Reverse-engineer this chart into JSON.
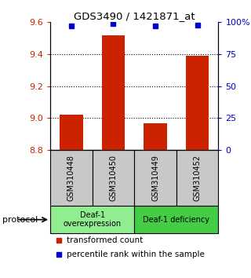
{
  "title": "GDS3490 / 1421871_at",
  "samples": [
    "GSM310448",
    "GSM310450",
    "GSM310449",
    "GSM310452"
  ],
  "bar_values": [
    9.02,
    9.52,
    8.97,
    9.39
  ],
  "percentile_values": [
    97,
    99,
    97,
    98
  ],
  "bar_bottom": 8.8,
  "ylim": [
    8.8,
    9.6
  ],
  "yticks": [
    8.8,
    9.0,
    9.2,
    9.4,
    9.6
  ],
  "right_yticks": [
    0,
    25,
    50,
    75,
    100
  ],
  "right_ylim": [
    0,
    100
  ],
  "bar_color": "#cc2200",
  "dot_color": "#0000cc",
  "group1_label": "Deaf-1\noverexpression",
  "group2_label": "Deaf-1 deficiency",
  "group1_color": "#90ee90",
  "group2_color": "#44cc44",
  "sample_box_color": "#c8c8c8",
  "legend_bar_label": "transformed count",
  "legend_dot_label": "percentile rank within the sample",
  "protocol_label": "protocol"
}
